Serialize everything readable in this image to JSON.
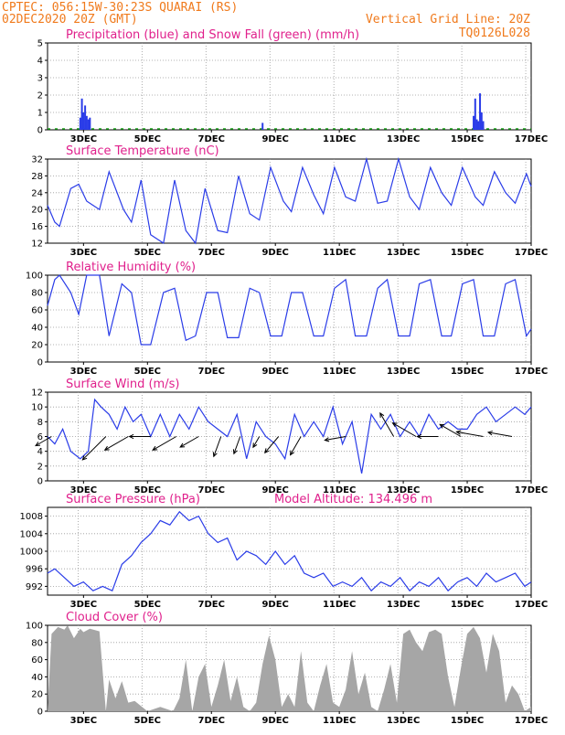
{
  "header": {
    "station": "CPTEC:   056:15W-30:23S  QUARAI (RS)",
    "run": "02DEC2020 20Z (GMT)",
    "grid": "Vertical Grid Line: 20Z",
    "code": "TQ0126L028"
  },
  "colors": {
    "header": "#f07a1c",
    "title": "#e0208c",
    "series": "#2a3ce8",
    "snow": "#18a018",
    "cloud": "#a6a6a6",
    "grid": "#9a9a9a"
  },
  "x_labels": [
    "3DEC",
    "5DEC",
    "7DEC",
    "9DEC",
    "11DEC",
    "13DEC",
    "15DEC",
    "17DEC"
  ],
  "chart_data": [
    {
      "type": "bar",
      "title": "Precipitation (blue) and Snow Fall (green) (mm/h)",
      "ylim": [
        0,
        5
      ],
      "yticks": [
        "0",
        "1",
        "2",
        "3",
        "4",
        "5"
      ],
      "x_range_days": [
        1.875,
        17.0
      ],
      "series": [
        {
          "name": "Precipitation",
          "x": [
            2.9,
            2.95,
            3.0,
            3.05,
            3.1,
            3.15,
            3.2,
            8.6,
            15.2,
            15.25,
            15.3,
            15.35,
            15.4,
            15.45,
            15.5
          ],
          "values": [
            0.7,
            1.8,
            1.0,
            1.4,
            0.8,
            0.6,
            0.7,
            0.4,
            0.8,
            1.8,
            0.6,
            0.5,
            2.1,
            1.0,
            0.5
          ]
        }
      ]
    },
    {
      "type": "line",
      "title": "Surface Temperature (nC)",
      "ylim": [
        12,
        32
      ],
      "yticks": [
        "12",
        "16",
        "20",
        "24",
        "28",
        "32"
      ],
      "x_range_days": [
        1.875,
        17.0
      ],
      "x": [
        1.875,
        2.1,
        2.25,
        2.6,
        2.85,
        3.1,
        3.3,
        3.5,
        3.8,
        4.25,
        4.5,
        4.8,
        5.1,
        5.5,
        5.85,
        6.2,
        6.5,
        6.8,
        7.2,
        7.5,
        7.85,
        8.2,
        8.5,
        8.85,
        9.25,
        9.5,
        9.85,
        10.2,
        10.5,
        10.85,
        11.2,
        11.5,
        11.85,
        12.2,
        12.5,
        12.85,
        13.2,
        13.5,
        13.85,
        14.2,
        14.5,
        14.85,
        15.25,
        15.5,
        15.85,
        16.2,
        16.5,
        16.85,
        17.0
      ],
      "values": [
        21,
        17,
        16,
        25,
        26,
        22,
        21,
        20,
        29,
        20,
        17,
        27,
        14,
        12,
        27,
        15,
        12,
        25,
        15,
        14.5,
        28,
        19,
        17.5,
        30,
        22,
        19.5,
        30,
        23.5,
        19,
        30,
        23,
        22,
        32,
        21.5,
        22,
        32,
        23,
        20,
        30,
        24,
        21,
        30,
        23,
        21,
        29,
        24,
        21.5,
        28.5,
        25.5
      ]
    },
    {
      "type": "line",
      "title": "Relative Humidity (%)",
      "ylim": [
        0,
        100
      ],
      "yticks": [
        "0",
        "20",
        "40",
        "60",
        "80",
        "100"
      ],
      "x_range_days": [
        1.875,
        17.0
      ],
      "x": [
        1.875,
        2.1,
        2.25,
        2.6,
        2.85,
        3.1,
        3.5,
        3.8,
        4.2,
        4.5,
        4.8,
        5.1,
        5.5,
        5.85,
        6.2,
        6.5,
        6.85,
        7.2,
        7.5,
        7.85,
        8.2,
        8.5,
        8.85,
        9.2,
        9.5,
        9.85,
        10.2,
        10.5,
        10.85,
        11.2,
        11.5,
        11.85,
        12.2,
        12.5,
        12.85,
        13.2,
        13.5,
        13.85,
        14.2,
        14.5,
        14.85,
        15.2,
        15.5,
        15.85,
        16.2,
        16.5,
        16.85,
        17.0
      ],
      "values": [
        65,
        95,
        100,
        80,
        55,
        100,
        100,
        30,
        90,
        80,
        20,
        20,
        80,
        85,
        25,
        30,
        80,
        80,
        28,
        28,
        85,
        80,
        30,
        30,
        80,
        80,
        30,
        30,
        85,
        95,
        30,
        30,
        85,
        95,
        30,
        30,
        90,
        95,
        30,
        30,
        90,
        95,
        30,
        30,
        90,
        95,
        30,
        38
      ]
    },
    {
      "type": "line",
      "title": "Surface Wind (m/s)",
      "ylim": [
        0,
        12
      ],
      "yticks": [
        "0",
        "2",
        "4",
        "6",
        "8",
        "10",
        "12"
      ],
      "x_range_days": [
        1.875,
        17.0
      ],
      "x": [
        1.875,
        2.1,
        2.35,
        2.6,
        2.9,
        3.15,
        3.35,
        3.55,
        3.8,
        4.05,
        4.3,
        4.55,
        4.8,
        5.1,
        5.4,
        5.7,
        6.0,
        6.3,
        6.6,
        6.9,
        7.2,
        7.5,
        7.8,
        8.1,
        8.4,
        8.7,
        9.0,
        9.3,
        9.6,
        9.9,
        10.2,
        10.5,
        10.8,
        11.1,
        11.4,
        11.7,
        12.0,
        12.3,
        12.6,
        12.9,
        13.2,
        13.5,
        13.8,
        14.1,
        14.4,
        14.7,
        15.0,
        15.3,
        15.6,
        15.9,
        16.2,
        16.5,
        16.8,
        17.0
      ],
      "values": [
        6,
        5,
        7,
        4,
        3,
        4,
        11,
        10,
        9,
        7,
        10,
        8,
        9,
        6,
        9,
        6,
        9,
        7,
        10,
        8,
        7,
        6,
        9,
        3,
        8,
        6,
        5,
        3,
        9,
        6,
        8,
        6,
        10,
        5,
        8,
        1,
        9,
        7,
        9,
        6,
        8,
        6,
        9,
        7,
        8,
        7,
        7,
        9,
        10,
        8,
        9,
        10,
        9,
        10
      ],
      "arrows": [
        {
          "x": 2.0,
          "speed": 5,
          "dir_deg": 240
        },
        {
          "x": 3.7,
          "speed": 10,
          "dir_deg": 225
        },
        {
          "x": 4.4,
          "speed": 8,
          "dir_deg": 240
        },
        {
          "x": 5.1,
          "speed": 6,
          "dir_deg": 270
        },
        {
          "x": 5.9,
          "speed": 8,
          "dir_deg": 240
        },
        {
          "x": 6.6,
          "speed": 6,
          "dir_deg": 240
        },
        {
          "x": 7.3,
          "speed": 6,
          "dir_deg": 200
        },
        {
          "x": 7.9,
          "speed": 5,
          "dir_deg": 200
        },
        {
          "x": 8.5,
          "speed": 3,
          "dir_deg": 210
        },
        {
          "x": 9.1,
          "speed": 6,
          "dir_deg": 220
        },
        {
          "x": 9.8,
          "speed": 6,
          "dir_deg": 210
        },
        {
          "x": 11.2,
          "speed": 6,
          "dir_deg": 260
        },
        {
          "x": 12.7,
          "speed": 8,
          "dir_deg": 330
        },
        {
          "x": 13.4,
          "speed": 8,
          "dir_deg": 300
        },
        {
          "x": 14.1,
          "speed": 6,
          "dir_deg": 270
        },
        {
          "x": 14.8,
          "speed": 7,
          "dir_deg": 300
        },
        {
          "x": 15.5,
          "speed": 8,
          "dir_deg": 280
        },
        {
          "x": 16.4,
          "speed": 7,
          "dir_deg": 280
        }
      ]
    },
    {
      "type": "line",
      "title": "Surface Pressure (hPa)",
      "subtitle": "Model Altitude: 134.496 m",
      "ylim": [
        990,
        1010
      ],
      "yticks": [
        "992",
        "996",
        "1000",
        "1004",
        "1008"
      ],
      "x_range_days": [
        1.875,
        17.0
      ],
      "x": [
        1.875,
        2.1,
        2.4,
        2.7,
        3.0,
        3.3,
        3.6,
        3.9,
        4.2,
        4.5,
        4.8,
        5.1,
        5.4,
        5.7,
        6.0,
        6.3,
        6.6,
        6.9,
        7.2,
        7.5,
        7.8,
        8.1,
        8.4,
        8.7,
        9.0,
        9.3,
        9.6,
        9.9,
        10.2,
        10.5,
        10.8,
        11.1,
        11.4,
        11.7,
        12.0,
        12.3,
        12.6,
        12.9,
        13.2,
        13.5,
        13.8,
        14.1,
        14.4,
        14.7,
        15.0,
        15.3,
        15.6,
        15.9,
        16.2,
        16.5,
        16.8,
        17.0
      ],
      "values": [
        995,
        996,
        994,
        992,
        993,
        991,
        992,
        991,
        997,
        999,
        1002,
        1004,
        1007,
        1006,
        1009,
        1007,
        1008,
        1004,
        1002,
        1003,
        998,
        1000,
        999,
        997,
        1000,
        997,
        999,
        995,
        994,
        995,
        992,
        993,
        992,
        994,
        991,
        993,
        992,
        994,
        991,
        993,
        992,
        994,
        991,
        993,
        994,
        992,
        995,
        993,
        994,
        995,
        992,
        993
      ]
    },
    {
      "type": "area",
      "title": "Cloud Cover (%)",
      "ylim": [
        0,
        100
      ],
      "yticks": [
        "0",
        "20",
        "40",
        "60",
        "80",
        "100"
      ],
      "x_range_days": [
        1.875,
        17.0
      ],
      "x": [
        1.875,
        2.0,
        2.2,
        2.4,
        2.5,
        2.7,
        2.9,
        3.0,
        3.2,
        3.4,
        3.5,
        3.7,
        3.8,
        4.0,
        4.2,
        4.4,
        4.6,
        5.0,
        5.4,
        5.8,
        6.0,
        6.2,
        6.4,
        6.6,
        6.8,
        7.0,
        7.2,
        7.4,
        7.6,
        7.8,
        8.0,
        8.2,
        8.4,
        8.6,
        8.8,
        9.0,
        9.2,
        9.4,
        9.6,
        9.8,
        10.0,
        10.2,
        10.4,
        10.6,
        10.8,
        11.0,
        11.2,
        11.4,
        11.6,
        11.8,
        12.0,
        12.2,
        12.4,
        12.6,
        12.8,
        13.0,
        13.2,
        13.4,
        13.6,
        13.8,
        14.0,
        14.2,
        14.4,
        14.6,
        14.8,
        15.0,
        15.2,
        15.4,
        15.6,
        15.8,
        16.0,
        16.2,
        16.4,
        16.6,
        16.8,
        17.0
      ],
      "values": [
        0,
        90,
        98,
        95,
        100,
        85,
        96,
        92,
        96,
        94,
        93,
        0,
        37,
        15,
        35,
        10,
        12,
        0,
        5,
        0,
        15,
        60,
        0,
        40,
        55,
        5,
        30,
        60,
        12,
        40,
        5,
        0,
        10,
        55,
        88,
        60,
        5,
        20,
        5,
        70,
        10,
        0,
        30,
        55,
        10,
        5,
        25,
        70,
        20,
        45,
        5,
        0,
        25,
        55,
        10,
        90,
        95,
        80,
        70,
        92,
        95,
        90,
        40,
        5,
        50,
        90,
        98,
        85,
        45,
        90,
        70,
        10,
        30,
        20,
        0,
        5
      ]
    }
  ]
}
